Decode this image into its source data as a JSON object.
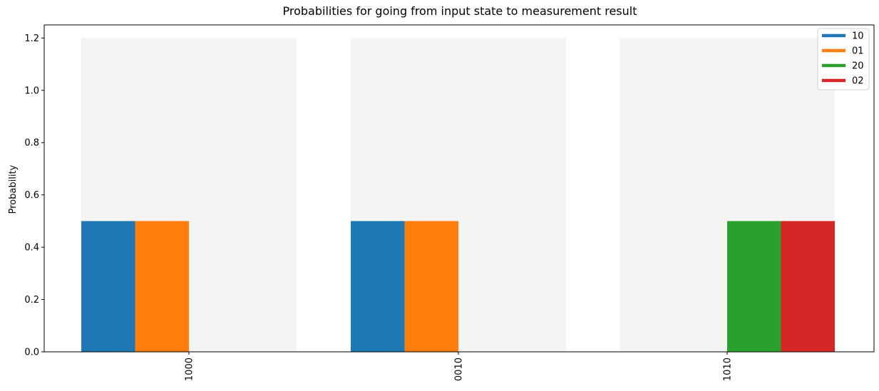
{
  "chart_data": {
    "type": "bar",
    "title": "Probabilities for going from input state to measurement result",
    "xlabel": "",
    "ylabel": "Probability",
    "ylim": [
      0,
      1.25
    ],
    "yticks": [
      "0.0",
      "0.2",
      "0.4",
      "0.6",
      "0.8",
      "1.0",
      "1.2"
    ],
    "categories": [
      "1000",
      "0010",
      "1010"
    ],
    "background_level": 1.2,
    "background_color": "#f4f4f4",
    "grid": false,
    "legend_position": "top-right",
    "series": [
      {
        "name": "10",
        "color": "#1f77b4",
        "values": [
          0.5,
          0.5,
          0.0
        ]
      },
      {
        "name": "01",
        "color": "#ff7f0e",
        "values": [
          0.5,
          0.5,
          0.0
        ]
      },
      {
        "name": "20",
        "color": "#2ca02c",
        "values": [
          0.0,
          0.0,
          0.5
        ]
      },
      {
        "name": "02",
        "color": "#d62728",
        "values": [
          0.0,
          0.0,
          0.5
        ]
      }
    ]
  }
}
